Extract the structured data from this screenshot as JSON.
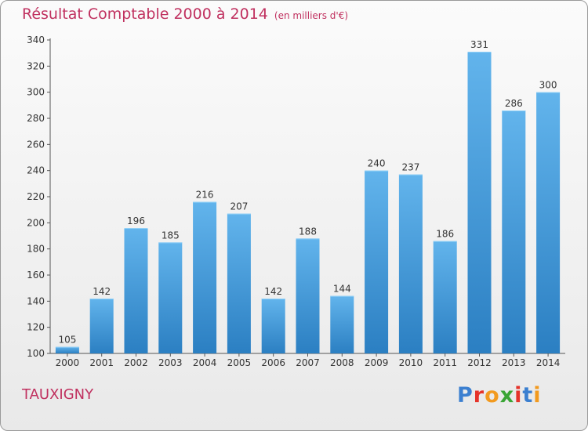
{
  "title": "Résultat Comptable 2000 à 2014",
  "unit_note": "(en milliers d'€)",
  "commune": "TAUXIGNY",
  "logo": {
    "text": "Proxiti",
    "colors": [
      "#3b7fd0",
      "#e5332a",
      "#f29a1f",
      "#3aa535",
      "#e5332a",
      "#3b7fd0",
      "#f29a1f"
    ]
  },
  "colors": {
    "title": "#c0305f",
    "bar_top": "#62b4ec",
    "bar_bottom": "#2b7fc2"
  },
  "chart_data": {
    "type": "bar",
    "categories": [
      "2000",
      "2001",
      "2002",
      "2003",
      "2004",
      "2005",
      "2006",
      "2007",
      "2008",
      "2009",
      "2010",
      "2011",
      "2012",
      "2013",
      "2014"
    ],
    "values": [
      105,
      142,
      196,
      185,
      216,
      207,
      142,
      188,
      144,
      240,
      237,
      186,
      331,
      286,
      300
    ],
    "ylim": [
      100,
      340
    ],
    "yticks": [
      100,
      120,
      140,
      160,
      180,
      200,
      220,
      240,
      260,
      280,
      300,
      320,
      340
    ],
    "grid": false,
    "xlabel": "",
    "ylabel": ""
  }
}
